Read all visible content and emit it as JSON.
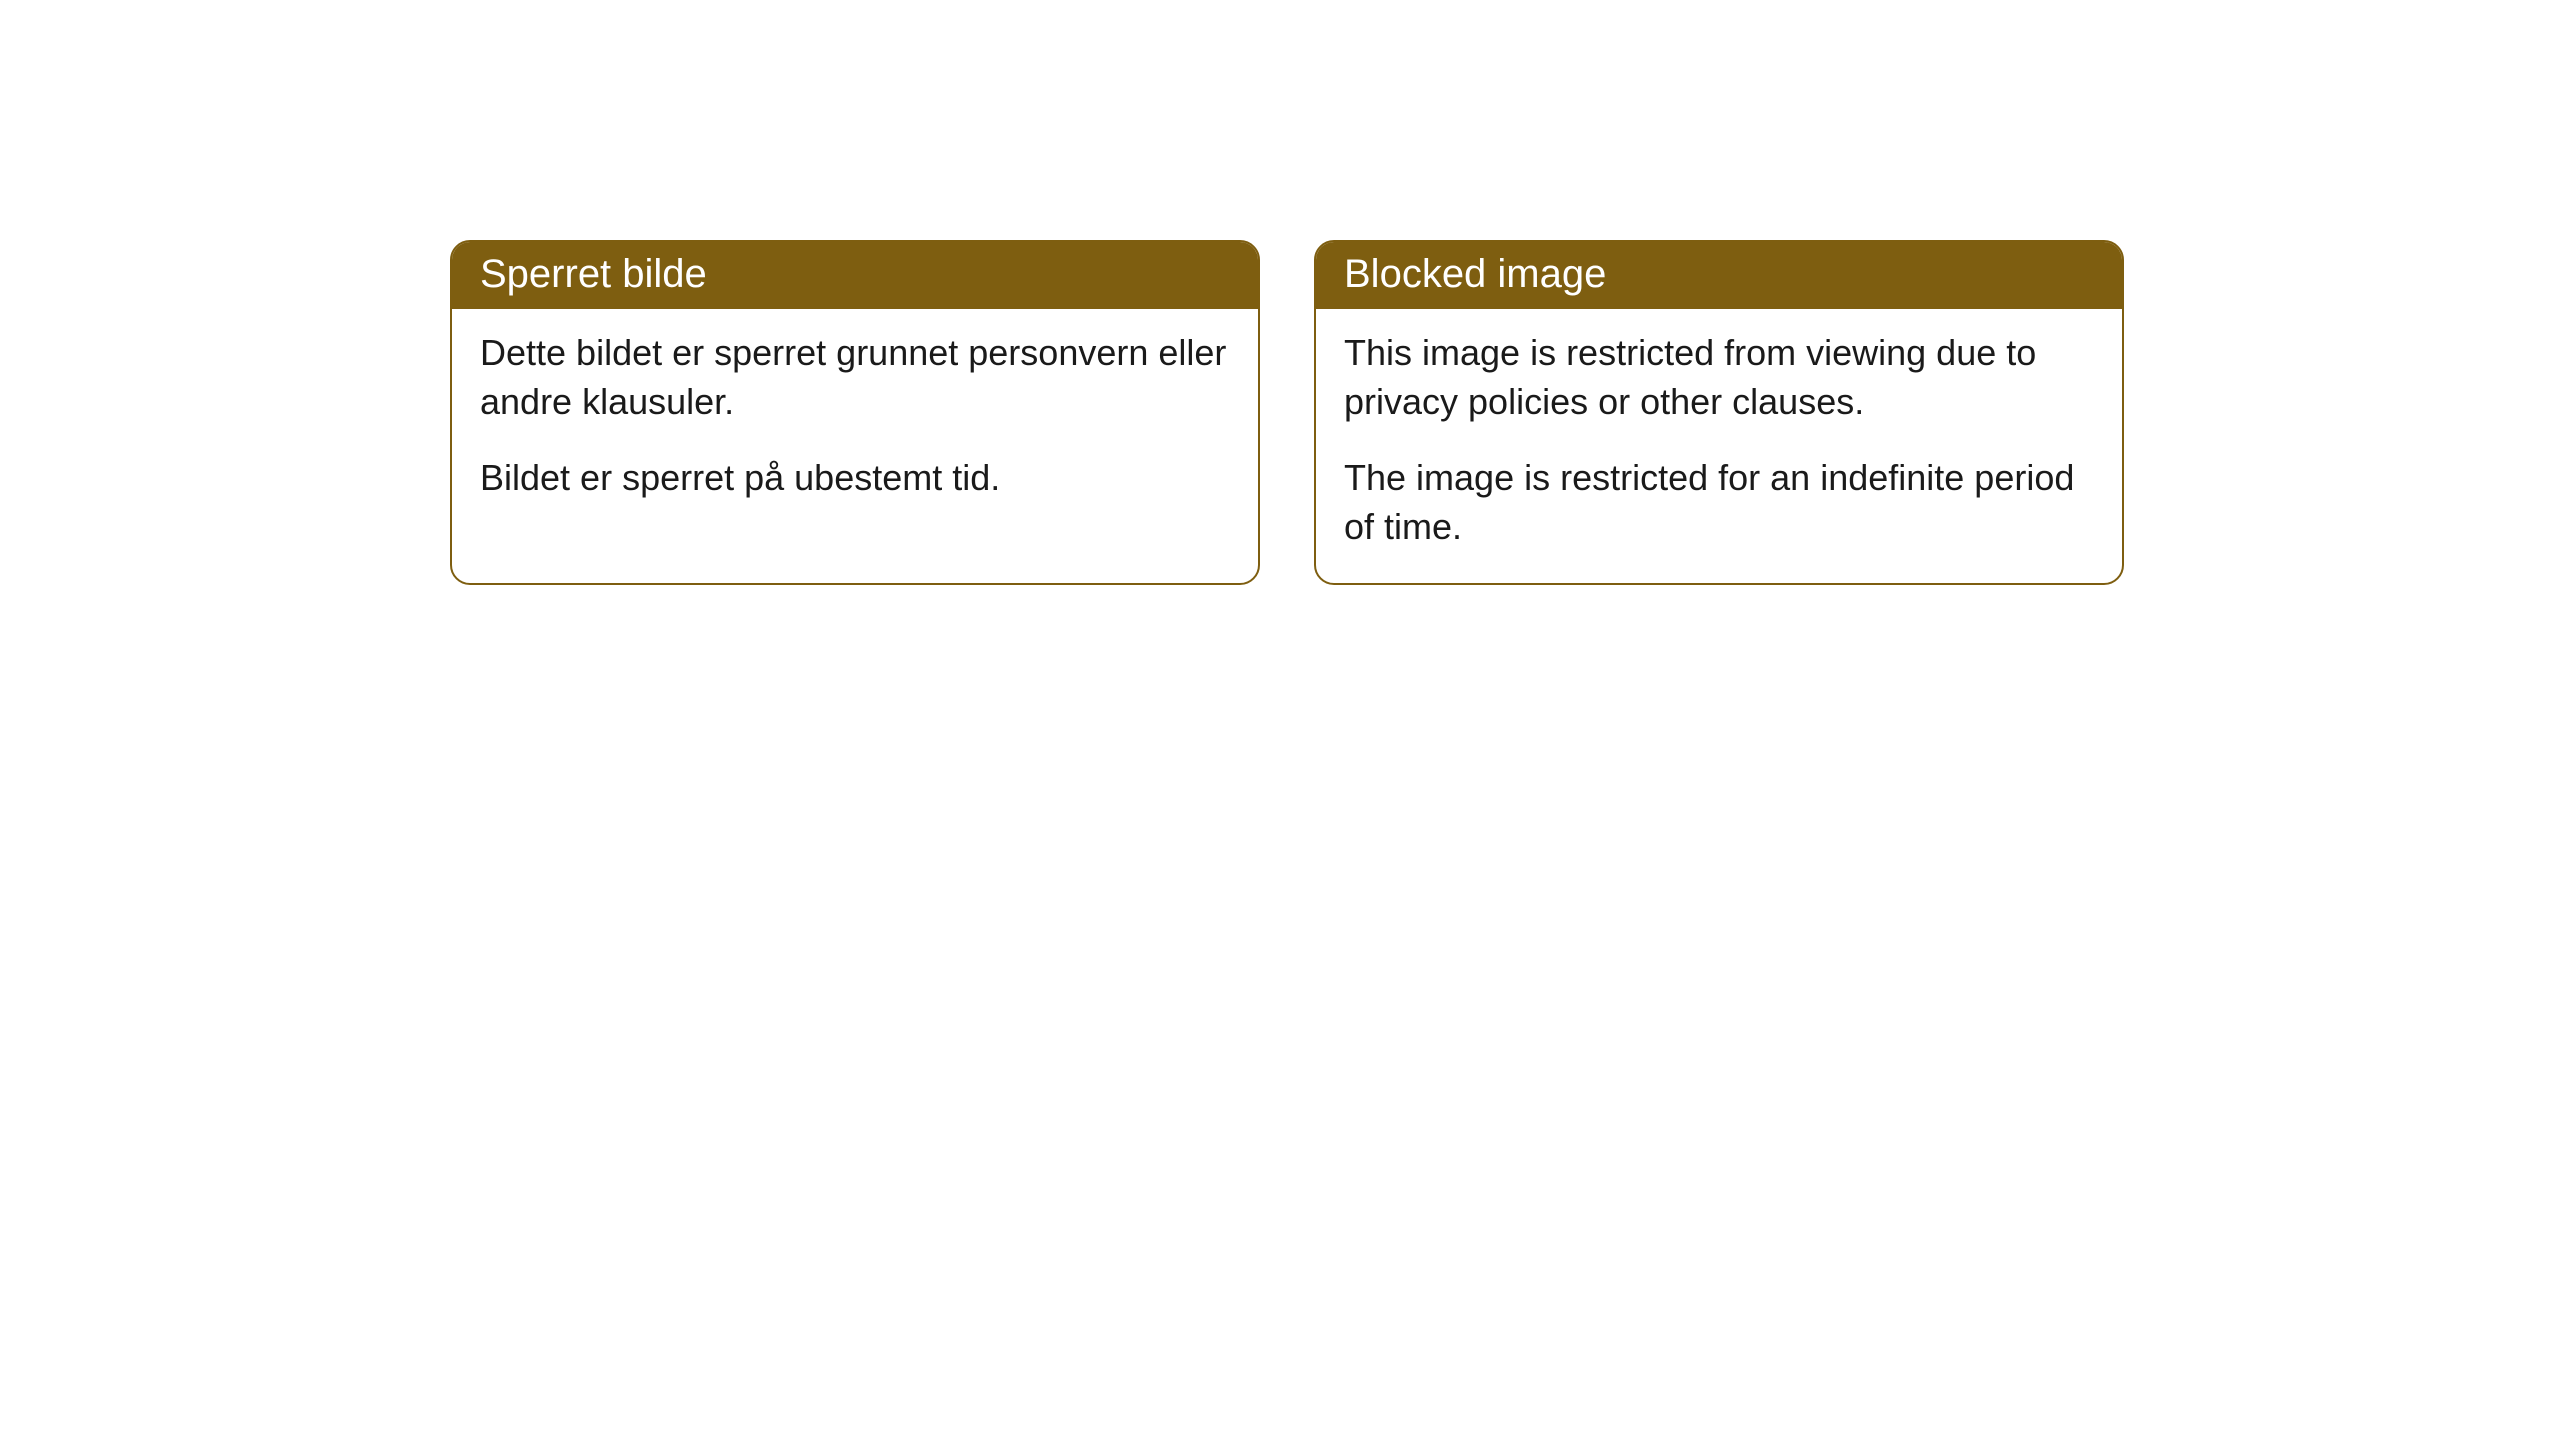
{
  "cards": [
    {
      "title": "Sperret bilde",
      "paragraph1": "Dette bildet er sperret grunnet personvern eller andre klausuler.",
      "paragraph2": "Bildet er sperret på ubestemt tid."
    },
    {
      "title": "Blocked image",
      "paragraph1": "This image is restricted from viewing due to privacy policies or other clauses.",
      "paragraph2": "The image is restricted for an indefinite period of time."
    }
  ],
  "styling": {
    "header_bg_color": "#7e5e10",
    "header_text_color": "#ffffff",
    "card_border_color": "#7e5e10",
    "card_bg_color": "#ffffff",
    "body_text_color": "#1a1a1a",
    "page_bg_color": "#ffffff",
    "border_radius": 20,
    "header_fontsize": 40,
    "body_fontsize": 36
  }
}
